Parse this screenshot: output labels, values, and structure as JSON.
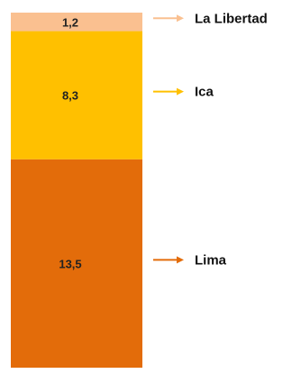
{
  "chart_data": {
    "type": "bar",
    "stacked": true,
    "title": "",
    "xlabel": "",
    "ylabel": "",
    "series": [
      {
        "name": "Lima",
        "value": 13.5,
        "label": "13,5",
        "color": "#E36C0A"
      },
      {
        "name": "Ica",
        "value": 8.3,
        "label": "8,3",
        "color": "#FFC000"
      },
      {
        "name": "La Libertad",
        "value": 1.2,
        "label": "1,2",
        "color": "#FAC090"
      }
    ],
    "legend": "right, arrows pointing to segments",
    "grid": false
  }
}
